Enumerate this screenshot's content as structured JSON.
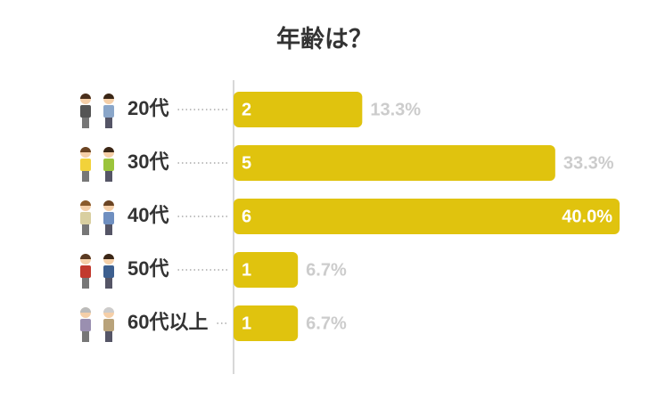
{
  "chart_data": {
    "type": "bar",
    "orientation": "horizontal",
    "title": "年齢は？",
    "categories": [
      "20代",
      "30代",
      "40代",
      "50代",
      "60代以上"
    ],
    "values": [
      2,
      5,
      6,
      1,
      1
    ],
    "color": "#e0c30e",
    "xlim": [
      0,
      6
    ],
    "percentages": {
      "values": [
        13.3,
        33.3,
        40.0,
        6.7,
        6.7
      ],
      "labels": [
        "13.3%",
        "33.3%",
        "40.0%",
        "6.7%",
        "6.7%"
      ]
    }
  }
}
